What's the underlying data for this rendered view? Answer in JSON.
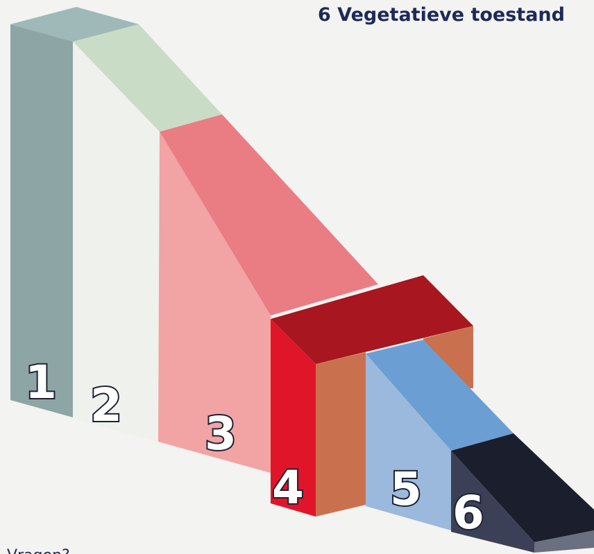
{
  "title": "6 Vegetatieve toestand",
  "blocks": [
    {
      "label": "1"
    },
    {
      "label": "2"
    },
    {
      "label": "3"
    },
    {
      "label": "4"
    },
    {
      "label": "5"
    },
    {
      "label": "6"
    }
  ],
  "footer": "Vragen?"
}
